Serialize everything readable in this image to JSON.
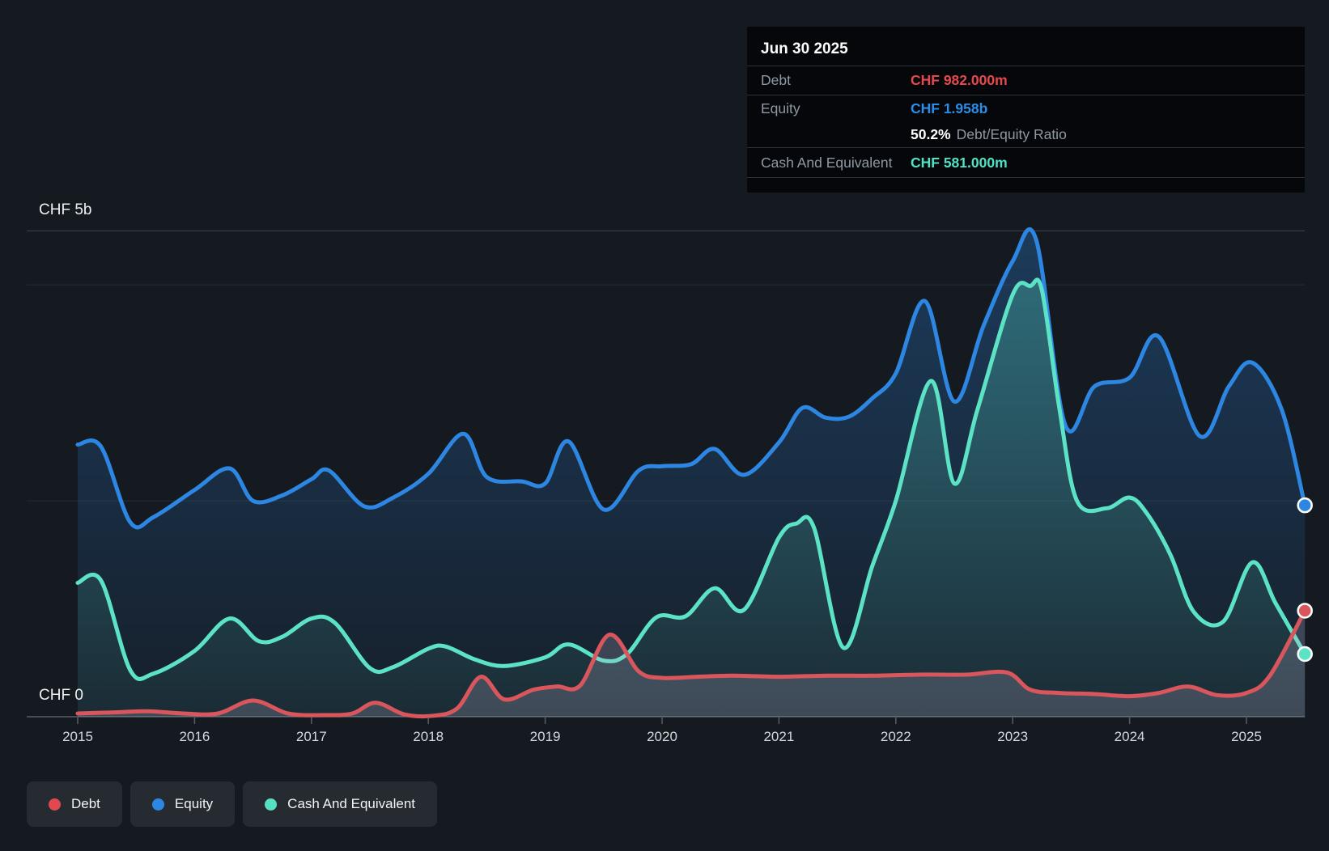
{
  "axis": {
    "y_top_label": "CHF 5b",
    "y_zero_label": "CHF 0",
    "years": [
      "2015",
      "2016",
      "2017",
      "2018",
      "2019",
      "2020",
      "2021",
      "2022",
      "2023",
      "2024",
      "2025"
    ]
  },
  "tooltip": {
    "date": "Jun 30 2025",
    "debt_label": "Debt",
    "debt_value": "CHF 982.000m",
    "equity_label": "Equity",
    "equity_value": "CHF 1.958b",
    "ratio_value": "50.2%",
    "ratio_label": "Debt/Equity Ratio",
    "cash_label": "Cash And Equivalent",
    "cash_value": "CHF 581.000m"
  },
  "legend": [
    {
      "label": "Debt",
      "color": "#e0494f"
    },
    {
      "label": "Equity",
      "color": "#2d87e2"
    },
    {
      "label": "Cash And Equivalent",
      "color": "#57dfc2"
    }
  ],
  "colors": {
    "background": "#151a21",
    "debt_line": "#d9565c",
    "equity_line": "#2d87e2",
    "cash_line": "#5ce3c5",
    "debt_value_text": "#e5484d",
    "equity_value_text": "#2b8de8",
    "cash_value_text": "#4fe3c5",
    "grid_strong": "#3f4550",
    "grid_faint": "#272d37",
    "axis_line": "#565e68"
  },
  "chart_data": {
    "type": "area",
    "title": "Debt to Equity History",
    "x_unit": "decimal_year",
    "x_range": [
      2015,
      2025.5
    ],
    "y_unit": "CHF billions",
    "y_axis_labels": [
      {
        "value": 0,
        "label": "CHF 0"
      },
      {
        "value": 4.5,
        "label": "CHF 5b"
      }
    ],
    "gridlines": [
      {
        "value": 4.5,
        "strong": true
      },
      {
        "value": 4.0,
        "strong": false
      },
      {
        "value": 2.0,
        "strong": false
      },
      {
        "value": 0.0,
        "axis": true
      }
    ],
    "legend_position": "bottom-left",
    "grid": true,
    "end_values": {
      "Debt": 0.982,
      "Equity": 1.958,
      "Cash And Equivalent": 0.581
    },
    "series": [
      {
        "name": "Equity",
        "color": "#2d87e2",
        "fill_color": "#2d87e2",
        "points": [
          [
            2015,
            2.52
          ],
          [
            2015.2,
            2.5
          ],
          [
            2015.45,
            1.8
          ],
          [
            2015.65,
            1.85
          ],
          [
            2016,
            2.1
          ],
          [
            2016.3,
            2.3
          ],
          [
            2016.5,
            2.0
          ],
          [
            2016.75,
            2.05
          ],
          [
            2017,
            2.2
          ],
          [
            2017.15,
            2.28
          ],
          [
            2017.45,
            1.95
          ],
          [
            2017.7,
            2.03
          ],
          [
            2018,
            2.25
          ],
          [
            2018.3,
            2.62
          ],
          [
            2018.5,
            2.22
          ],
          [
            2018.8,
            2.18
          ],
          [
            2019,
            2.16
          ],
          [
            2019.2,
            2.55
          ],
          [
            2019.5,
            1.92
          ],
          [
            2019.8,
            2.28
          ],
          [
            2020,
            2.32
          ],
          [
            2020.25,
            2.34
          ],
          [
            2020.45,
            2.48
          ],
          [
            2020.7,
            2.24
          ],
          [
            2021,
            2.54
          ],
          [
            2021.2,
            2.86
          ],
          [
            2021.4,
            2.77
          ],
          [
            2021.6,
            2.78
          ],
          [
            2021.8,
            2.95
          ],
          [
            2022,
            3.18
          ],
          [
            2022.25,
            3.85
          ],
          [
            2022.5,
            2.92
          ],
          [
            2022.75,
            3.62
          ],
          [
            2023,
            4.22
          ],
          [
            2023.2,
            4.42
          ],
          [
            2023.45,
            2.7
          ],
          [
            2023.7,
            3.06
          ],
          [
            2024,
            3.14
          ],
          [
            2024.25,
            3.52
          ],
          [
            2024.6,
            2.6
          ],
          [
            2024.85,
            3.06
          ],
          [
            2025.05,
            3.28
          ],
          [
            2025.3,
            2.85
          ],
          [
            2025.5,
            1.958
          ]
        ]
      },
      {
        "name": "Cash And Equivalent",
        "color": "#5ce3c5",
        "fill_color": "#5ce3c5",
        "points": [
          [
            2015,
            1.24
          ],
          [
            2015.2,
            1.26
          ],
          [
            2015.45,
            0.43
          ],
          [
            2015.65,
            0.4
          ],
          [
            2016,
            0.61
          ],
          [
            2016.3,
            0.91
          ],
          [
            2016.55,
            0.7
          ],
          [
            2016.75,
            0.74
          ],
          [
            2017,
            0.91
          ],
          [
            2017.2,
            0.87
          ],
          [
            2017.5,
            0.45
          ],
          [
            2017.7,
            0.46
          ],
          [
            2018,
            0.63
          ],
          [
            2018.15,
            0.65
          ],
          [
            2018.4,
            0.53
          ],
          [
            2018.65,
            0.47
          ],
          [
            2019,
            0.55
          ],
          [
            2019.2,
            0.67
          ],
          [
            2019.5,
            0.52
          ],
          [
            2019.7,
            0.58
          ],
          [
            2019.95,
            0.92
          ],
          [
            2020.2,
            0.93
          ],
          [
            2020.45,
            1.19
          ],
          [
            2020.7,
            0.99
          ],
          [
            2021,
            1.66
          ],
          [
            2021.15,
            1.79
          ],
          [
            2021.3,
            1.75
          ],
          [
            2021.55,
            0.64
          ],
          [
            2021.8,
            1.4
          ],
          [
            2022,
            2.0
          ],
          [
            2022.3,
            3.11
          ],
          [
            2022.5,
            2.16
          ],
          [
            2022.7,
            2.85
          ],
          [
            2023,
            3.91
          ],
          [
            2023.15,
            3.99
          ],
          [
            2023.25,
            3.95
          ],
          [
            2023.4,
            2.85
          ],
          [
            2023.55,
            2.0
          ],
          [
            2023.8,
            1.93
          ],
          [
            2024,
            2.03
          ],
          [
            2024.15,
            1.88
          ],
          [
            2024.35,
            1.5
          ],
          [
            2024.55,
            0.97
          ],
          [
            2024.8,
            0.88
          ],
          [
            2025.05,
            1.43
          ],
          [
            2025.25,
            1.05
          ],
          [
            2025.5,
            0.581
          ]
        ]
      },
      {
        "name": "Debt",
        "color": "#d9565c",
        "fill_color": "#beb4cf",
        "points": [
          [
            2015,
            0.03
          ],
          [
            2015.3,
            0.04
          ],
          [
            2015.6,
            0.05
          ],
          [
            2015.9,
            0.03
          ],
          [
            2016.2,
            0.03
          ],
          [
            2016.5,
            0.15
          ],
          [
            2016.8,
            0.03
          ],
          [
            2017.1,
            0.015
          ],
          [
            2017.35,
            0.03
          ],
          [
            2017.55,
            0.13
          ],
          [
            2017.8,
            0.02
          ],
          [
            2018.05,
            0.01
          ],
          [
            2018.25,
            0.08
          ],
          [
            2018.45,
            0.37
          ],
          [
            2018.65,
            0.16
          ],
          [
            2018.9,
            0.25
          ],
          [
            2019.1,
            0.28
          ],
          [
            2019.3,
            0.29
          ],
          [
            2019.55,
            0.76
          ],
          [
            2019.8,
            0.42
          ],
          [
            2020,
            0.36
          ],
          [
            2020.3,
            0.37
          ],
          [
            2020.6,
            0.38
          ],
          [
            2021,
            0.37
          ],
          [
            2021.4,
            0.38
          ],
          [
            2021.8,
            0.38
          ],
          [
            2022.2,
            0.39
          ],
          [
            2022.6,
            0.39
          ],
          [
            2022.95,
            0.41
          ],
          [
            2023.15,
            0.25
          ],
          [
            2023.4,
            0.22
          ],
          [
            2023.7,
            0.21
          ],
          [
            2024,
            0.19
          ],
          [
            2024.25,
            0.22
          ],
          [
            2024.5,
            0.28
          ],
          [
            2024.75,
            0.2
          ],
          [
            2025,
            0.22
          ],
          [
            2025.2,
            0.38
          ],
          [
            2025.5,
            0.982
          ]
        ]
      }
    ]
  }
}
